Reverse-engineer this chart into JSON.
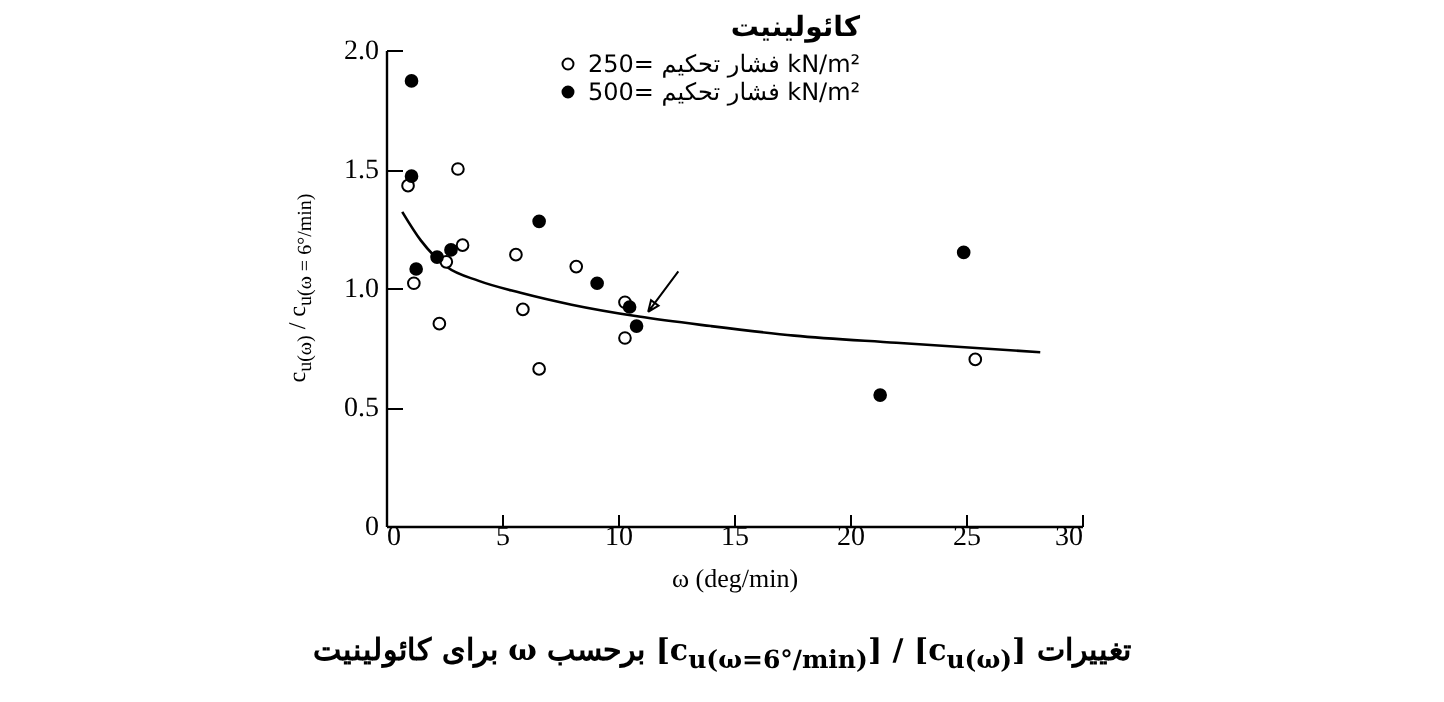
{
  "chart_data": {
    "type": "scatter",
    "xlabel": "ω (deg/min)",
    "ylabel": "c$_{u(ω)}$ / c$_{u(ω = 6°/min)}$",
    "legend_title": "كائولينيت",
    "annotations": [
      "تغییرات [c$_{u(ω)}$] / [c$_{u(ω=6°/min)}$] برحسب ω برای کائولینیت"
    ],
    "series": [
      {
        "name": "فشار تحکیم =250 kN/m²",
        "color": "#ffffff",
        "x": [
          0.95,
          1.2,
          2.3,
          2.6,
          3.3,
          3.1,
          5.6,
          5.9,
          6.6,
          8.2,
          10.3,
          10.3,
          25.4
        ],
        "values": [
          1.43,
          1.02,
          0.85,
          1.11,
          1.18,
          1.5,
          1.14,
          0.91,
          0.66,
          1.09,
          0.94,
          0.79,
          0.7
        ]
      },
      {
        "name": "فشار تحکیم =500 kN/m²",
        "color": "#000000",
        "x": [
          1.1,
          1.1,
          1.3,
          2.2,
          2.8,
          6.6,
          9.1,
          10.5,
          10.8,
          24.9,
          21.3
        ],
        "values": [
          1.87,
          1.47,
          1.08,
          1.13,
          1.16,
          1.28,
          1.02,
          0.92,
          0.84,
          1.15,
          0.55
        ]
      },
      {
        "type": "line",
        "marker": "none",
        "color": "#000000",
        "x": [
          0.7,
          1.5,
          2.6,
          4,
          5.8,
          8,
          10.9,
          14,
          17.6,
          22,
          28.2
        ],
        "values": [
          1.32,
          1.2,
          1.09,
          1.03,
          0.98,
          0.93,
          0.88,
          0.84,
          0.8,
          0.77,
          0.73
        ]
      }
    ],
    "xlim": [
      0,
      30
    ],
    "xticks": [
      0,
      5,
      10,
      15,
      20,
      25,
      30
    ],
    "ylim": [
      0,
      2.0
    ],
    "yticks": [
      0,
      {
        "value": 0.5,
        "label": "0.5"
      },
      {
        "value": 1,
        "label": "1.0"
      },
      {
        "value": 1.5,
        "label": "1.5"
      },
      {
        "value": 2,
        "label": "2.0"
      }
    ],
    "marker": "circle",
    "legend": "top",
    "grid": false
  }
}
